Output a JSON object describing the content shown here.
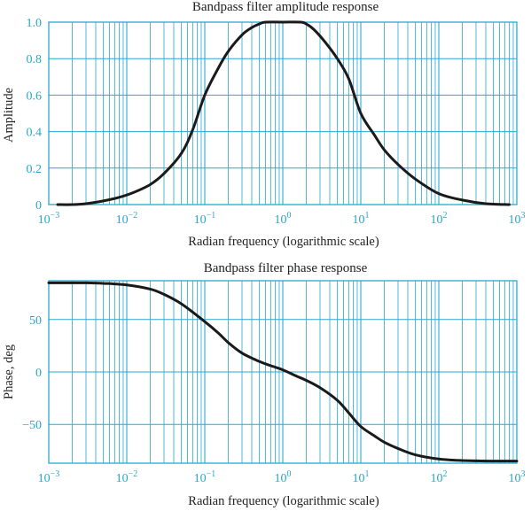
{
  "chart_data": [
    {
      "type": "line",
      "title": "Bandpass filter amplitude response",
      "xlabel": "Radian frequency (logarithmic scale)",
      "ylabel": "Amplitude",
      "xscale": "log",
      "xlim": [
        0.001,
        1000
      ],
      "ylim": [
        0,
        1
      ],
      "grid": true,
      "xticks": [
        {
          "base": "10",
          "exp": "−3"
        },
        {
          "base": "10",
          "exp": "−2"
        },
        {
          "base": "10",
          "exp": "−1"
        },
        {
          "base": "10",
          "exp": "0"
        },
        {
          "base": "10",
          "exp": "1"
        },
        {
          "base": "10",
          "exp": "2"
        },
        {
          "base": "10",
          "exp": "3"
        }
      ],
      "yticks": [
        {
          "value": 0,
          "label": "0"
        },
        {
          "value": 0.2,
          "label": "0.2"
        },
        {
          "value": 0.4,
          "label": "0.4"
        },
        {
          "value": 0.6,
          "label": "0.6"
        },
        {
          "value": 0.8,
          "label": "0.8"
        },
        {
          "value": 1.0,
          "label": "1.0"
        }
      ],
      "series": [
        {
          "x": [
            0.0013,
            0.002,
            0.003,
            0.005,
            0.008,
            0.012,
            0.02,
            0.03,
            0.05,
            0.07,
            0.1,
            0.15,
            0.2,
            0.3,
            0.4,
            0.5,
            0.6,
            1.0,
            1.7,
            2.0,
            2.5,
            3.5,
            5,
            7,
            10,
            15,
            20,
            30,
            50,
            100,
            200,
            400,
            800
          ],
          "y": [
            0,
            0,
            0.005,
            0.02,
            0.04,
            0.065,
            0.11,
            0.17,
            0.28,
            0.41,
            0.6,
            0.75,
            0.84,
            0.93,
            0.97,
            0.99,
            1.0,
            1.0,
            1.0,
            0.99,
            0.96,
            0.89,
            0.8,
            0.69,
            0.5,
            0.38,
            0.3,
            0.22,
            0.14,
            0.06,
            0.025,
            0.005,
            0
          ]
        }
      ]
    },
    {
      "type": "line",
      "title": "Bandpass filter phase response",
      "xlabel": "Radian frequency (logarithmic scale)",
      "ylabel": "Phase, deg",
      "xscale": "log",
      "xlim": [
        0.001,
        1000
      ],
      "ylim": [
        -87,
        87
      ],
      "grid": true,
      "xticks": [
        {
          "base": "10",
          "exp": "−3"
        },
        {
          "base": "10",
          "exp": "−2"
        },
        {
          "base": "10",
          "exp": "−1"
        },
        {
          "base": "10",
          "exp": "0"
        },
        {
          "base": "10",
          "exp": "1"
        },
        {
          "base": "10",
          "exp": "2"
        },
        {
          "base": "10",
          "exp": "3"
        }
      ],
      "yticks": [
        {
          "value": -50,
          "label": "−50"
        },
        {
          "value": 0,
          "label": "0"
        },
        {
          "value": 50,
          "label": "50"
        }
      ],
      "series": [
        {
          "x": [
            0.001,
            0.002,
            0.003,
            0.005,
            0.01,
            0.02,
            0.03,
            0.05,
            0.1,
            0.15,
            0.2,
            0.3,
            0.5,
            0.7,
            1,
            1.5,
            2,
            3,
            5,
            7,
            10,
            15,
            20,
            30,
            50,
            100,
            200,
            500,
            1000
          ],
          "y": [
            85,
            85,
            85,
            84.5,
            83,
            79,
            74,
            65,
            48,
            37,
            28,
            18,
            10,
            6,
            2,
            -4,
            -8,
            -15,
            -27,
            -39,
            -52,
            -61,
            -67,
            -73,
            -79,
            -83,
            -84.5,
            -85,
            -85
          ]
        }
      ]
    }
  ]
}
